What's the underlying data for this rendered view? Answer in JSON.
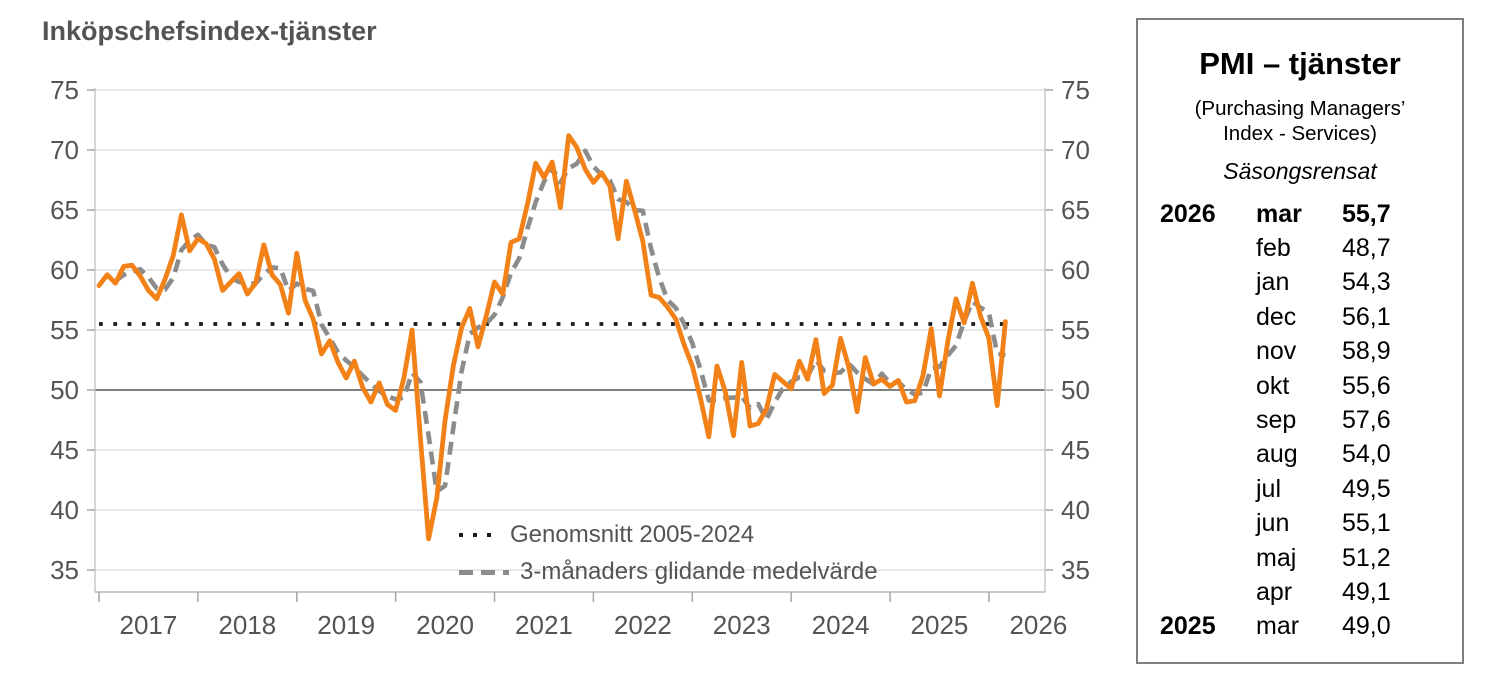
{
  "chart": {
    "title": "Inköpschefsindex-tjänster",
    "legend": {
      "average": "Genomsnitt 2005-2024",
      "moving_average": "3-månaders glidande medelvärde"
    }
  },
  "chart_data": {
    "type": "line",
    "title": "Inköpschefsindex-tjänster",
    "ylim": [
      35,
      75
    ],
    "y_ticks": [
      35,
      40,
      45,
      50,
      55,
      60,
      65,
      70,
      75
    ],
    "x_year_ticks": [
      2017,
      2018,
      2019,
      2020,
      2021,
      2022,
      2023,
      2024,
      2025,
      2026
    ],
    "grid": "horizontal",
    "legend_position": "inside-bottom",
    "average_2005_2024": 55.5,
    "series": [
      {
        "name": "PMI – tjänster (säsongsrensat)",
        "color": "#F28118",
        "start_month": "2017-01",
        "end_month": "2026-03",
        "values": [
          58.7,
          59.6,
          58.9,
          60.3,
          60.4,
          59.5,
          58.3,
          57.6,
          59.2,
          61.2,
          64.6,
          61.6,
          62.6,
          62.2,
          60.9,
          58.3,
          59.0,
          59.7,
          58.0,
          58.9,
          62.1,
          59.6,
          58.8,
          56.4,
          61.4,
          57.5,
          55.9,
          53.0,
          54.1,
          52.3,
          51.0,
          52.4,
          50.2,
          49.0,
          50.6,
          48.8,
          48.3,
          51.0,
          55.0,
          46.0,
          37.6,
          41.0,
          47.5,
          52.0,
          55.2,
          56.8,
          53.6,
          56.2,
          59.0,
          58.0,
          62.3,
          62.6,
          65.5,
          68.9,
          67.7,
          69.0,
          65.2,
          71.2,
          70.2,
          68.4,
          67.3,
          68.1,
          67.0,
          62.6,
          67.4,
          65.0,
          62.4,
          57.9,
          57.7,
          56.9,
          55.9,
          53.8,
          52.0,
          49.3,
          46.1,
          52.0,
          49.9,
          46.2,
          52.3,
          47.0,
          47.2,
          48.4,
          51.3,
          50.7,
          50.1,
          52.4,
          50.9,
          54.2,
          49.7,
          50.4,
          54.3,
          51.9,
          48.2,
          52.7,
          50.5,
          50.9,
          50.3,
          50.8,
          49.0,
          49.1,
          51.2,
          55.1,
          49.5,
          54.0,
          57.6,
          55.6,
          58.9,
          56.1,
          54.3,
          48.7,
          55.7
        ]
      },
      {
        "name": "3-månaders glidande medelvärde",
        "color": "#8C8C8C",
        "derived": "3-month moving average of series 0"
      },
      {
        "name": "Genomsnitt 2005-2024",
        "color": "#1A1A1A",
        "constant": 55.5
      }
    ]
  },
  "panel": {
    "title": "PMI – tjänster",
    "subtitle_line1": "(Purchasing Managers’",
    "subtitle_line2": "Index - Services)",
    "season_note": "Säsongsrensat",
    "rows": [
      {
        "year": "2026",
        "month": "mar",
        "value": "55,7",
        "bold": true
      },
      {
        "year": "",
        "month": "feb",
        "value": "48,7",
        "bold": false
      },
      {
        "year": "",
        "month": "jan",
        "value": "54,3",
        "bold": false
      },
      {
        "year": "",
        "month": "dec",
        "value": "56,1",
        "bold": false
      },
      {
        "year": "",
        "month": "nov",
        "value": "58,9",
        "bold": false
      },
      {
        "year": "",
        "month": "okt",
        "value": "55,6",
        "bold": false
      },
      {
        "year": "",
        "month": "sep",
        "value": "57,6",
        "bold": false
      },
      {
        "year": "",
        "month": "aug",
        "value": "54,0",
        "bold": false
      },
      {
        "year": "",
        "month": "jul",
        "value": "49,5",
        "bold": false
      },
      {
        "year": "",
        "month": "jun",
        "value": "55,1",
        "bold": false
      },
      {
        "year": "",
        "month": "maj",
        "value": "51,2",
        "bold": false
      },
      {
        "year": "",
        "month": "apr",
        "value": "49,1",
        "bold": false
      },
      {
        "year": "2025",
        "month": "mar",
        "value": "49,0",
        "bold": false
      }
    ]
  },
  "colors": {
    "pmi_line": "#F28118",
    "moving_average_line": "#8C8C8C",
    "average_dotted_line": "#1A1A1A",
    "gridline": "#D9D9D9",
    "gridline_50": "#808080",
    "axis_text": "#545454",
    "panel_border": "#808080"
  }
}
